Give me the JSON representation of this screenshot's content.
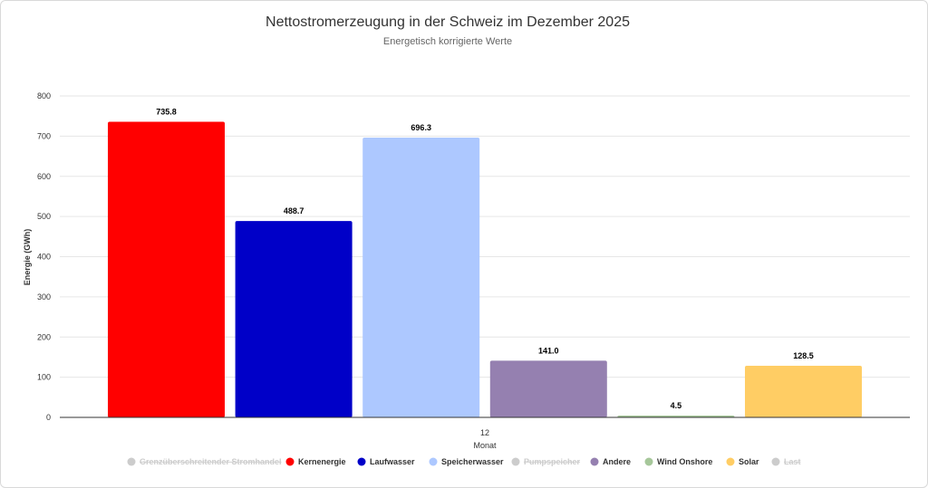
{
  "chart_data": {
    "type": "bar",
    "title": "Nettostromerzeugung in der Schweiz im Dezember 2025",
    "subtitle": "Energetisch korrigierte Werte",
    "xlabel": "Monat",
    "ylabel": "Energie (GWh)",
    "categories": [
      "12"
    ],
    "ylim": [
      0,
      800
    ],
    "yticks": [
      0,
      100,
      200,
      300,
      400,
      500,
      600,
      700,
      800
    ],
    "grid": true,
    "legend_position": "bottom",
    "series": [
      {
        "name": "Kernenergie",
        "values": [
          735.8
        ],
        "color": "#ff0000",
        "label": "735.8"
      },
      {
        "name": "Laufwasser",
        "values": [
          488.7
        ],
        "color": "#0000c8",
        "label": "488.7"
      },
      {
        "name": "Speicherwasser",
        "values": [
          696.3
        ],
        "color": "#adc8ff",
        "label": "696.3"
      },
      {
        "name": "Andere",
        "values": [
          141.0
        ],
        "color": "#9580b0",
        "label": "141.0"
      },
      {
        "name": "Wind Onshore",
        "values": [
          4.5
        ],
        "color": "#a6c79a",
        "label": "4.5"
      },
      {
        "name": "Solar",
        "values": [
          128.5
        ],
        "color": "#ffcd64",
        "label": "128.5"
      }
    ],
    "legend": [
      {
        "name": "Grenzüberschreitender Stromhandel",
        "color": "#cccccc",
        "hidden": true
      },
      {
        "name": "Kernenergie",
        "color": "#ff0000",
        "hidden": false
      },
      {
        "name": "Laufwasser",
        "color": "#0000c8",
        "hidden": false
      },
      {
        "name": "Speicherwasser",
        "color": "#adc8ff",
        "hidden": false
      },
      {
        "name": "Pumpspeicher",
        "color": "#cccccc",
        "hidden": true
      },
      {
        "name": "Andere",
        "color": "#9580b0",
        "hidden": false
      },
      {
        "name": "Wind Onshore",
        "color": "#a6c79a",
        "hidden": false
      },
      {
        "name": "Solar",
        "color": "#ffcd64",
        "hidden": false
      },
      {
        "name": "Last",
        "color": "#cccccc",
        "hidden": true
      }
    ]
  }
}
